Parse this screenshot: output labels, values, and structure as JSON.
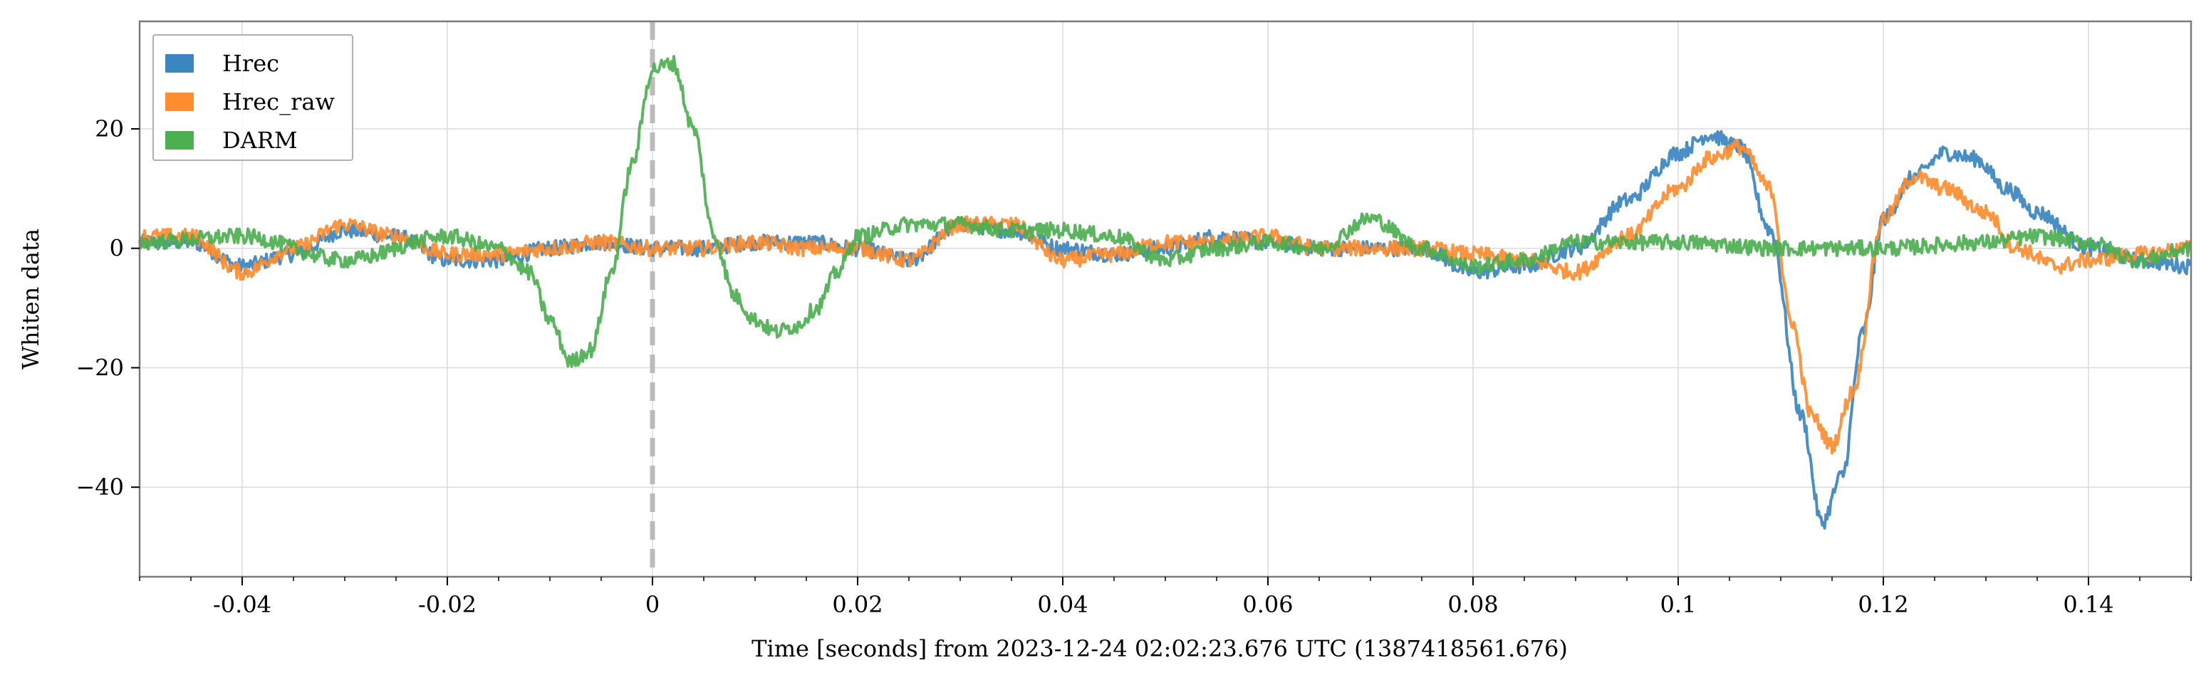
{
  "chart_data": {
    "type": "line",
    "xlabel": "Time [seconds] from 2023-12-24 02:02:23.676 UTC (1387418561.676)",
    "ylabel": "Whiten data",
    "xlim": [
      -0.05,
      0.15
    ],
    "ylim": [
      -55,
      38
    ],
    "x_ticks": [
      -0.04,
      -0.02,
      0,
      0.02,
      0.04,
      0.06,
      0.08,
      0.1,
      0.12,
      0.14
    ],
    "x_tick_labels": [
      "-0.04",
      "-0.02",
      "0",
      "0.02",
      "0.04",
      "0.06",
      "0.08",
      "0.1",
      "0.12",
      "0.14"
    ],
    "y_ticks": [
      20,
      0,
      -20,
      -40
    ],
    "y_tick_labels": [
      "20",
      "0",
      "−20",
      "−40"
    ],
    "grid": true,
    "legend_position": "top-left",
    "reference_line": {
      "x": 0,
      "style": "dashed",
      "color": "#bbbbbb"
    },
    "series": [
      {
        "name": "Hrec",
        "color": "#3a86c0",
        "x": [
          -0.05,
          -0.045,
          -0.04,
          -0.035,
          -0.03,
          -0.025,
          -0.02,
          -0.015,
          -0.01,
          -0.005,
          0,
          0.005,
          0.01,
          0.015,
          0.02,
          0.025,
          0.03,
          0.035,
          0.04,
          0.045,
          0.05,
          0.055,
          0.06,
          0.065,
          0.07,
          0.075,
          0.08,
          0.085,
          0.09,
          0.095,
          0.1,
          0.103,
          0.106,
          0.109,
          0.112,
          0.114,
          0.116,
          0.118,
          0.12,
          0.123,
          0.126,
          0.129,
          0.132,
          0.135,
          0.14,
          0.145,
          0.15
        ],
        "y": [
          1,
          1,
          -3,
          -1,
          3,
          2,
          -2,
          -2,
          0,
          1,
          0,
          0,
          1,
          1,
          0,
          -2,
          4,
          3,
          0,
          -1,
          0,
          2,
          1,
          0,
          0,
          0,
          -4,
          -3,
          0,
          8,
          16,
          19,
          17,
          3,
          -28,
          -46,
          -38,
          -14,
          5,
          12,
          16,
          15,
          10,
          6,
          0,
          -2,
          -3
        ]
      },
      {
        "name": "Hrec_raw",
        "color": "#ff8c2e",
        "x": [
          -0.05,
          -0.045,
          -0.04,
          -0.035,
          -0.03,
          -0.025,
          -0.02,
          -0.015,
          -0.01,
          -0.005,
          0,
          0.005,
          0.01,
          0.015,
          0.02,
          0.025,
          0.03,
          0.035,
          0.04,
          0.045,
          0.05,
          0.055,
          0.06,
          0.065,
          0.07,
          0.075,
          0.08,
          0.085,
          0.09,
          0.095,
          0.1,
          0.103,
          0.106,
          0.109,
          0.111,
          0.113,
          0.115,
          0.117,
          0.12,
          0.123,
          0.126,
          0.13,
          0.133,
          0.137,
          0.14,
          0.145,
          0.15
        ],
        "y": [
          2,
          2,
          -4,
          0,
          4,
          2,
          -1,
          -1,
          0,
          1,
          0,
          0,
          1,
          0,
          0,
          -2,
          4,
          4,
          -2,
          -1,
          1,
          1,
          2,
          0,
          0,
          0,
          -1,
          -2,
          -4,
          2,
          10,
          15,
          17,
          10,
          -12,
          -28,
          -33,
          -24,
          5,
          12,
          10,
          6,
          0,
          -3,
          -2,
          -1,
          0
        ]
      },
      {
        "name": "DARM",
        "color": "#4caf50",
        "x": [
          -0.05,
          -0.04,
          -0.03,
          -0.02,
          -0.015,
          -0.012,
          -0.01,
          -0.008,
          -0.006,
          -0.004,
          -0.002,
          0,
          0.002,
          0.004,
          0.006,
          0.008,
          0.01,
          0.012,
          0.014,
          0.016,
          0.018,
          0.02,
          0.025,
          0.03,
          0.035,
          0.04,
          0.045,
          0.05,
          0.055,
          0.06,
          0.065,
          0.07,
          0.075,
          0.08,
          0.085,
          0.09,
          0.095,
          0.1,
          0.11,
          0.12,
          0.13,
          0.135,
          0.14,
          0.145,
          0.15
        ],
        "y": [
          1,
          2,
          -2,
          2,
          0,
          -4,
          -12,
          -19,
          -17,
          -4,
          14,
          30,
          31,
          20,
          2,
          -8,
          -12,
          -14,
          -13,
          -10,
          -4,
          2,
          4,
          4,
          3,
          3,
          2,
          -2,
          0,
          1,
          0,
          5,
          0,
          -3,
          -2,
          1,
          1,
          1,
          0,
          0,
          1,
          2,
          1,
          -2,
          0
        ]
      }
    ]
  }
}
